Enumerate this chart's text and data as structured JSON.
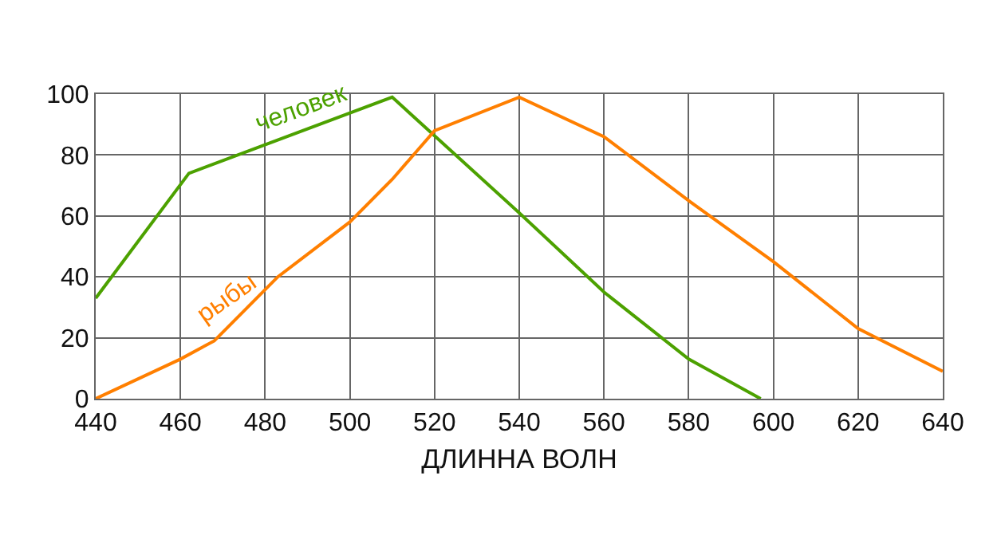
{
  "chart_data": {
    "type": "line",
    "xlabel": "ДЛИННА ВОЛН",
    "series": [
      {
        "name": "человек",
        "color": "#4ca100",
        "x": [
          440,
          462,
          510,
          540,
          560,
          580,
          597
        ],
        "values": [
          33,
          74,
          99,
          61,
          35,
          13,
          0
        ]
      },
      {
        "name": "рыбы",
        "color": "#ff7f00",
        "x": [
          440,
          460,
          468,
          483,
          500,
          510,
          520,
          540,
          560,
          580,
          600,
          620,
          640
        ],
        "values": [
          0,
          13,
          19,
          40,
          58,
          72,
          88,
          99,
          86,
          65,
          45,
          23,
          9
        ]
      }
    ],
    "xlim": [
      440,
      640
    ],
    "xticks": [
      440,
      460,
      480,
      500,
      520,
      540,
      560,
      580,
      600,
      620,
      640
    ],
    "ylim": [
      0,
      100
    ],
    "yticks": [
      0,
      20,
      40,
      60,
      80,
      100
    ],
    "grid": true,
    "legend": false,
    "marker": "none",
    "line_style": "solid"
  }
}
